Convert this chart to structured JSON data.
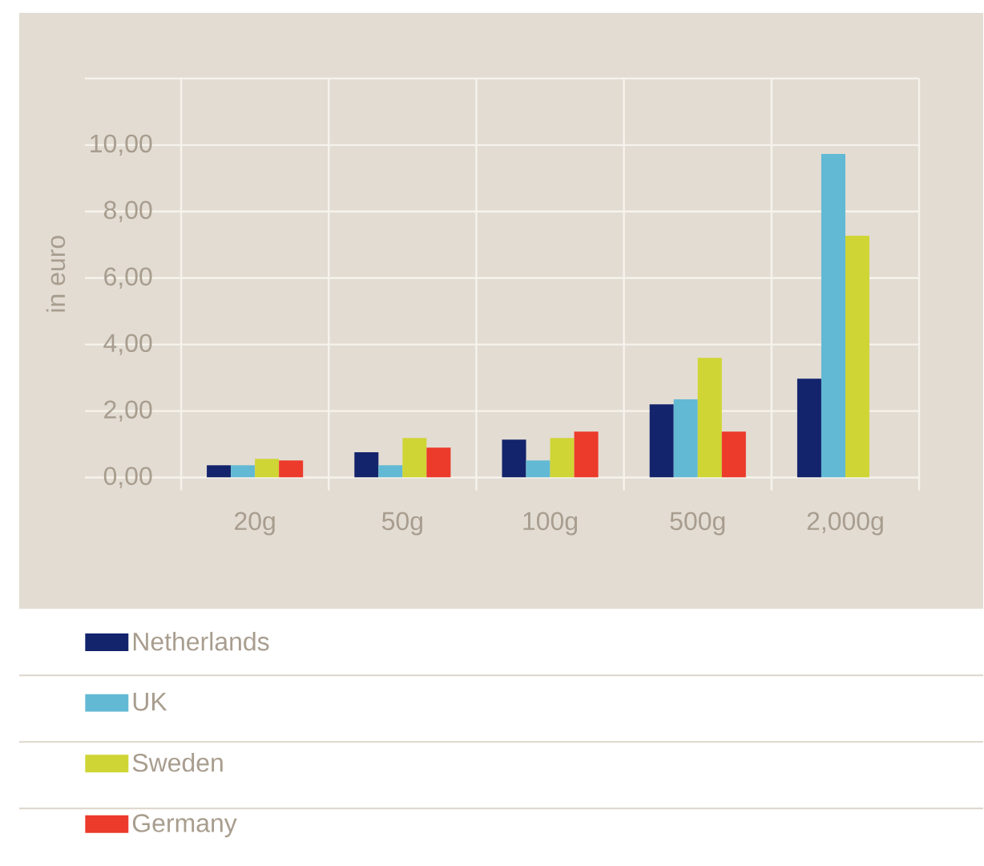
{
  "chart_data": {
    "type": "bar",
    "ylabel": "in euro",
    "categories": [
      "20g",
      "50g",
      "100g",
      "500g",
      "2,000g"
    ],
    "series": [
      {
        "name": "Netherlands",
        "color": "#13246c",
        "values": [
          0.37,
          0.76,
          1.14,
          2.2,
          2.97
        ]
      },
      {
        "name": "UK",
        "color": "#62b9d4",
        "values": [
          0.37,
          0.37,
          0.51,
          2.35,
          9.73
        ]
      },
      {
        "name": "Sweden",
        "color": "#cfd534",
        "values": [
          0.56,
          1.19,
          1.19,
          3.6,
          7.27
        ]
      },
      {
        "name": "Germany",
        "color": "#ec3a2b",
        "values": [
          0.51,
          0.9,
          1.38,
          1.38,
          null
        ]
      }
    ],
    "ylim": [
      0,
      12
    ],
    "yticks": [
      {
        "value": 0,
        "label": "0,00"
      },
      {
        "value": 2,
        "label": "2,00"
      },
      {
        "value": 4,
        "label": "4,00"
      },
      {
        "value": 6,
        "label": "6,00"
      },
      {
        "value": 8,
        "label": "8,00"
      },
      {
        "value": 10,
        "label": "10,00"
      },
      {
        "value": 12,
        "label": null
      }
    ],
    "grid": true,
    "legend": "bottom"
  }
}
